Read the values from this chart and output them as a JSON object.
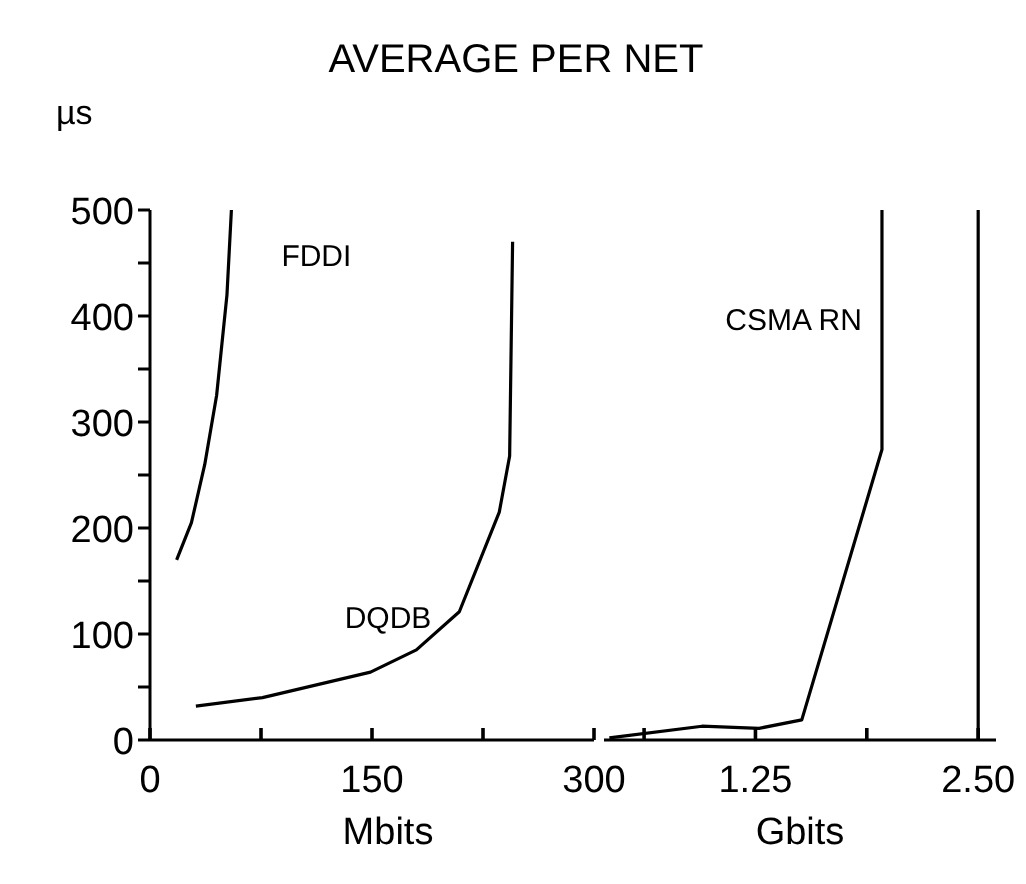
{
  "chart_data": [
    {
      "type": "line",
      "title": "AVERAGE PER NET",
      "ylabel": "µs",
      "xlabel": "Mbits",
      "xlim": [
        0,
        300
      ],
      "xticks": [
        0,
        {
          "value": 75,
          "label": null
        },
        150,
        {
          "value": 225,
          "label": null
        },
        300
      ],
      "ylim": [
        0,
        500
      ],
      "yticks": [
        0,
        {
          "value": 50,
          "label": null
        },
        100,
        {
          "value": 150,
          "label": null
        },
        200,
        {
          "value": 250,
          "label": null
        },
        300,
        {
          "value": 350,
          "label": null
        },
        400,
        {
          "value": 450,
          "label": null
        },
        500
      ],
      "marker": "none",
      "line_style": "solid",
      "series": [
        {
          "name": "FDDI",
          "color": "#000000",
          "x": [
            18,
            28,
            37,
            45,
            52,
            55
          ],
          "values": [
            170,
            205,
            260,
            325,
            420,
            500
          ]
        },
        {
          "name": "DQDB",
          "color": "#000000",
          "x": [
            31,
            76,
            149,
            180,
            209,
            236,
            243,
            245
          ],
          "values": [
            32,
            40,
            64,
            85,
            121,
            215,
            268,
            470
          ]
        }
      ]
    },
    {
      "type": "line",
      "xlabel": "Gbits",
      "xlim": [
        0.4,
        2.6
      ],
      "xticks": [
        {
          "value": 0.625,
          "label": null
        },
        1.25,
        {
          "value": 1.875,
          "label": null
        },
        {
          "value": 2.5,
          "label": "2.50"
        }
      ],
      "ylim": [
        0,
        500
      ],
      "tick_labels": "x",
      "marker": "none",
      "line_style": "solid",
      "ref_lines": [
        {
          "axis": "x",
          "value": 2.5,
          "label": null
        }
      ],
      "series": [
        {
          "name": "CSMA RN",
          "color": "#000000",
          "x": [
            0.43,
            0.95,
            1.27,
            1.51,
            1.96,
            1.96
          ],
          "values": [
            2,
            13,
            11,
            19,
            274,
            500
          ]
        }
      ]
    }
  ]
}
